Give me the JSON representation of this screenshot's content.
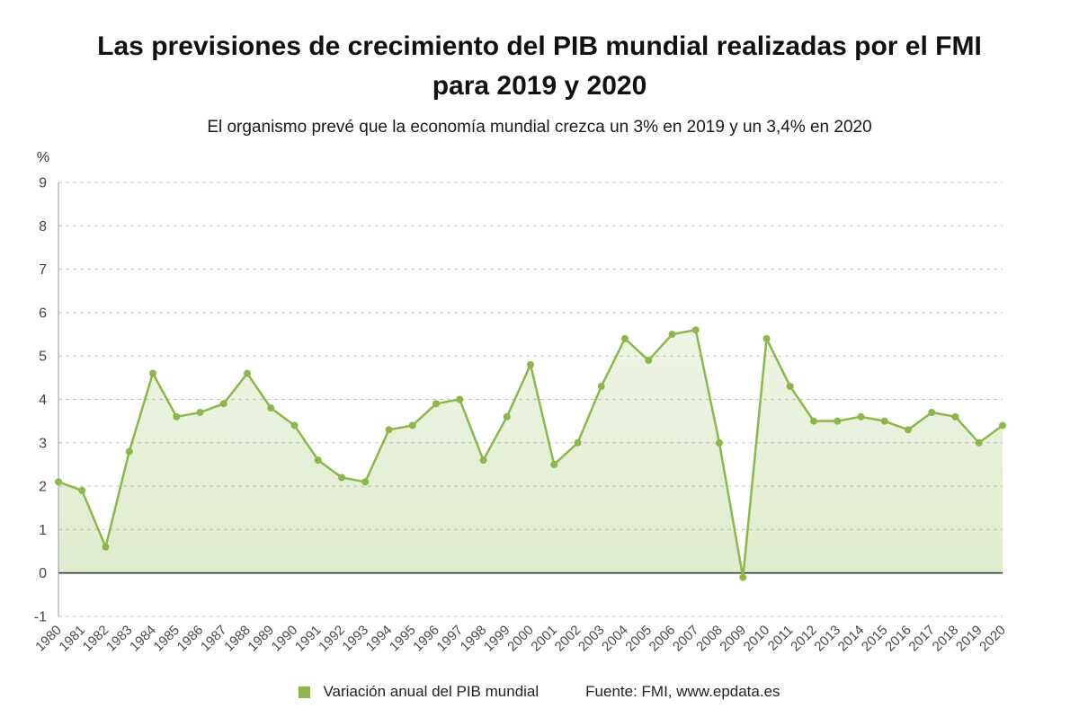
{
  "title": "Las previsiones de crecimiento del PIB mundial realizadas por el FMI\npara 2019 y 2020",
  "subtitle": "El organismo prevé que la economía mundial crezca un 3% en 2019 y un 3,4% en 2020",
  "legend": {
    "label": "Variación anual del PIB mundial",
    "source": "Fuente: FMI, www.epdata.es"
  },
  "chart_data": {
    "type": "line",
    "title": "Las previsiones de crecimiento del PIB mundial realizadas por el FMI para 2019 y 2020",
    "subtitle": "El organismo prevé que la economía mundial crezca un 3% en 2019 y un 3,4% en 2020",
    "ylabel": "%",
    "xlabel": "",
    "x": [
      1980,
      1981,
      1982,
      1983,
      1984,
      1985,
      1986,
      1987,
      1988,
      1989,
      1990,
      1991,
      1992,
      1993,
      1994,
      1995,
      1996,
      1997,
      1998,
      1999,
      2000,
      2001,
      2002,
      2003,
      2004,
      2005,
      2006,
      2007,
      2008,
      2009,
      2010,
      2011,
      2012,
      2013,
      2014,
      2015,
      2016,
      2017,
      2018,
      2019,
      2020
    ],
    "values": [
      2.1,
      1.9,
      0.6,
      2.8,
      4.6,
      3.6,
      3.7,
      3.9,
      4.6,
      3.8,
      3.4,
      2.6,
      2.2,
      2.1,
      3.3,
      3.4,
      3.9,
      4.0,
      2.6,
      3.6,
      4.8,
      2.5,
      3.0,
      4.3,
      5.4,
      4.9,
      5.5,
      5.6,
      3.0,
      -0.1,
      5.4,
      4.3,
      3.5,
      3.5,
      3.6,
      3.5,
      3.3,
      3.7,
      3.6,
      3.0,
      3.4
    ],
    "ylim": [
      -1,
      9
    ],
    "yticks": [
      -1,
      0,
      1,
      2,
      3,
      4,
      5,
      6,
      7,
      8,
      9
    ],
    "grid": "dashed-horizontal",
    "legend_position": "bottom",
    "series_name": "Variación anual del PIB mundial",
    "line_color": "#8cb84b",
    "point_color": "#8cb84b",
    "area_color": "#8cb84b",
    "zero_line_color": "#3a3a3a",
    "grid_color": "#c4c4c4",
    "axis_color": "#9a9a9a",
    "tick_label_color": "#444444"
  }
}
